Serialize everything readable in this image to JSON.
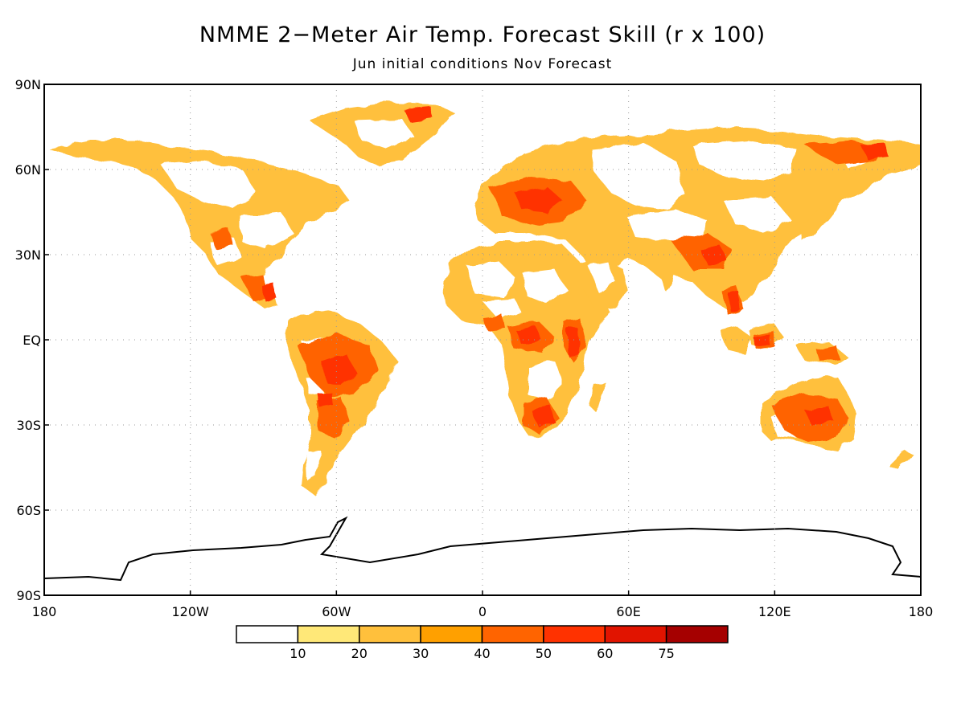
{
  "title": "NMME 2−Meter Air Temp. Forecast Skill (r x 100)",
  "subtitle": "Jun initial conditions   Nov Forecast",
  "map": {
    "projection": "cylindrical equidistant",
    "lon_range": [
      -180,
      180
    ],
    "lat_range": [
      -90,
      90
    ],
    "grid": "dotted",
    "lat_ticks": [
      {
        "value": 90,
        "label": "90N"
      },
      {
        "value": 60,
        "label": "60N"
      },
      {
        "value": 30,
        "label": "30N"
      },
      {
        "value": 0,
        "label": "EQ"
      },
      {
        "value": -30,
        "label": "30S"
      },
      {
        "value": -60,
        "label": "60S"
      },
      {
        "value": -90,
        "label": "90S"
      }
    ],
    "lon_ticks": [
      {
        "value": -180,
        "label": "180"
      },
      {
        "value": -120,
        "label": "120W"
      },
      {
        "value": -60,
        "label": "60W"
      },
      {
        "value": 0,
        "label": "0"
      },
      {
        "value": 60,
        "label": "60E"
      },
      {
        "value": 120,
        "label": "120E"
      },
      {
        "value": 180,
        "label": "180"
      }
    ]
  },
  "colorbar": {
    "bins": [
      {
        "color": "#ffffff"
      },
      {
        "color": "#ffe878"
      },
      {
        "color": "#ffc03c"
      },
      {
        "color": "#ffa000"
      },
      {
        "color": "#ff6400"
      },
      {
        "color": "#ff3200"
      },
      {
        "color": "#e11400"
      },
      {
        "color": "#a50000"
      }
    ],
    "labels": [
      "10",
      "20",
      "30",
      "40",
      "50",
      "60",
      "75"
    ]
  }
}
